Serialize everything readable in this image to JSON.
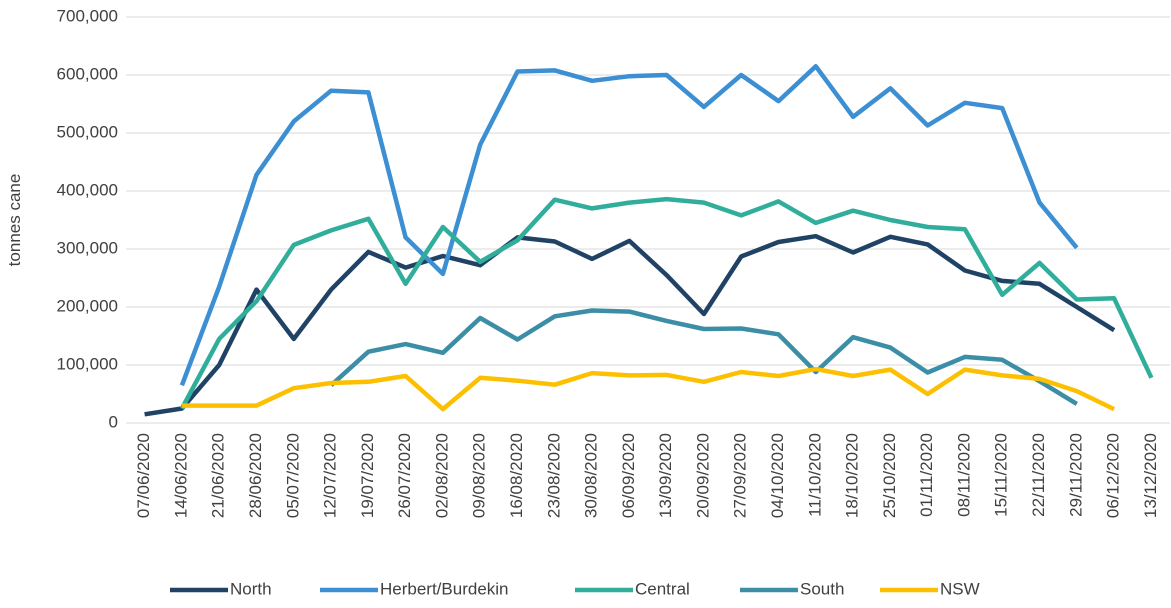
{
  "chart_data": {
    "type": "line",
    "y_label": "tonnes cane",
    "categories": [
      "07/06/2020",
      "14/06/2020",
      "21/06/2020",
      "28/06/2020",
      "05/07/2020",
      "12/07/2020",
      "19/07/2020",
      "26/07/2020",
      "02/08/2020",
      "09/08/2020",
      "16/08/2020",
      "23/08/2020",
      "30/08/2020",
      "06/09/2020",
      "13/09/2020",
      "20/09/2020",
      "27/09/2020",
      "04/10/2020",
      "11/10/2020",
      "18/10/2020",
      "25/10/2020",
      "01/11/2020",
      "08/11/2020",
      "15/11/2020",
      "22/11/2020",
      "29/11/2020",
      "06/12/2020",
      "13/12/2020"
    ],
    "series": [
      {
        "name": "North",
        "color": "#1f4265",
        "values": [
          15000,
          25000,
          100000,
          230000,
          145000,
          230000,
          295000,
          268000,
          288000,
          272000,
          320000,
          313000,
          283000,
          314000,
          255000,
          188000,
          287000,
          312000,
          322000,
          294000,
          321000,
          308000,
          263000,
          245000,
          240000,
          200000,
          160000,
          null
        ]
      },
      {
        "name": "Herbert/Burdekin",
        "color": "#3b8fd2",
        "values": [
          null,
          65000,
          235000,
          428000,
          520000,
          573000,
          570000,
          320000,
          257000,
          480000,
          606000,
          608000,
          590000,
          598000,
          600000,
          545000,
          600000,
          555000,
          615000,
          528000,
          577000,
          513000,
          552000,
          543000,
          380000,
          302000,
          null,
          null
        ]
      },
      {
        "name": "Central",
        "color": "#31ae9b",
        "values": [
          null,
          25000,
          145000,
          210000,
          307000,
          332000,
          352000,
          240000,
          338000,
          278000,
          315000,
          385000,
          370000,
          380000,
          386000,
          380000,
          358000,
          382000,
          345000,
          366000,
          350000,
          338000,
          334000,
          221000,
          276000,
          213000,
          215000,
          78000
        ]
      },
      {
        "name": "South",
        "color": "#3c8ea6",
        "values": [
          null,
          null,
          null,
          null,
          null,
          65000,
          123000,
          136000,
          121000,
          181000,
          144000,
          184000,
          194000,
          192000,
          176000,
          162000,
          163000,
          153000,
          88000,
          148000,
          130000,
          87000,
          114000,
          109000,
          72000,
          33000,
          null,
          null
        ]
      },
      {
        "name": "NSW",
        "color": "#fdc000",
        "values": [
          null,
          30000,
          30000,
          30000,
          60000,
          69000,
          71000,
          81000,
          24000,
          78000,
          73000,
          66000,
          86000,
          82000,
          83000,
          71000,
          88000,
          81000,
          93000,
          81000,
          92000,
          50000,
          92000,
          82000,
          76000,
          55000,
          24000,
          null
        ]
      }
    ],
    "ylim": [
      0,
      700000
    ],
    "yticks": [
      0,
      {
        "value": 100000,
        "label": "100,000"
      },
      {
        "value": 200000,
        "label": "200,000"
      },
      {
        "value": 300000,
        "label": "300,000"
      },
      {
        "value": 400000,
        "label": "400,000"
      },
      {
        "value": 500000,
        "label": "500,000"
      },
      {
        "value": 600000,
        "label": "600,000"
      },
      {
        "value": 700000,
        "label": "700,000"
      }
    ],
    "grid": true,
    "legend": "bottom"
  }
}
